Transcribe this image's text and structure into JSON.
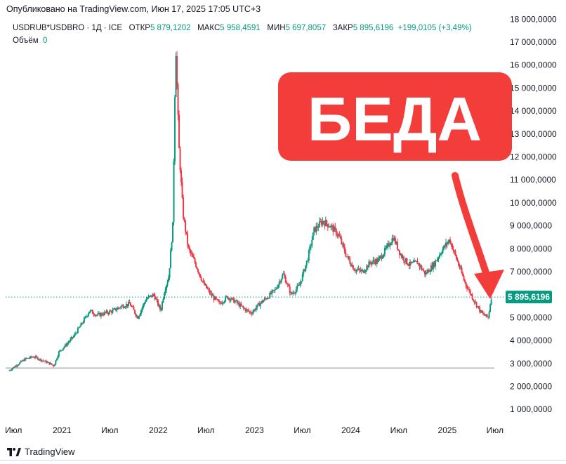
{
  "published_text": "Опубликовано на TradingView.com, Июн 17, 2025 17:05 UTC+3",
  "legend": {
    "symbol": "USDRUB*USDBRO · 1Д · ICE",
    "open_label": "ОТКР",
    "open_value": "5 879,1202",
    "high_label": "МАКС",
    "high_value": "5 958,4591",
    "low_label": "МИН",
    "low_value": "5 697,8057",
    "close_label": "ЗАКР",
    "close_value": "5 895,6196",
    "change": "+199,0105 (+3,49%)"
  },
  "volume": {
    "label": "Объём",
    "value": "0"
  },
  "annotation": {
    "text": "БЕДА",
    "color": "#f23d3b"
  },
  "branding": {
    "text": "TradingView",
    "icon": "tradingview-logo-icon"
  },
  "colors": {
    "up": "#089981",
    "down": "#f23645",
    "last_price_badge": "#089981",
    "price_line": "#089981",
    "baseline": "#b2b5be",
    "annotation": "#f23d3b"
  },
  "chart_data": {
    "type": "candlestick",
    "title": "",
    "xlabel": "",
    "ylabel": "",
    "ylim": [
      0,
      18500000
    ],
    "grid": false,
    "legend_position": "top-left",
    "y_ticks": [
      1000000,
      2000000,
      3000000,
      4000000,
      5000000,
      6000000,
      7000000,
      8000000,
      9000000,
      10000000,
      11000000,
      12000000,
      13000000,
      14000000,
      15000000,
      16000000,
      17000000,
      18000000
    ],
    "y_tick_labels": [
      "1 000,0000",
      "2 000,0000",
      "3 000,0000",
      "4 000,0000",
      "5 000,0000",
      "6 000,0000",
      "7 000,0000",
      "8 000,0000",
      "9 000,0000",
      "10 000,0000",
      "11 000,0000",
      "12 000,0000",
      "13 000,0000",
      "14 000,0000",
      "15 000,0000",
      "16 000,0000",
      "17 000,0000",
      "18 000,0000"
    ],
    "x_tick_labels": [
      "Июл",
      "2021",
      "Июл",
      "2022",
      "Июл",
      "2023",
      "Июл",
      "2024",
      "Июл",
      "2025",
      "Июл"
    ],
    "x_tick_dates": [
      "2020-07-01",
      "2021-01-01",
      "2021-07-01",
      "2022-01-01",
      "2022-07-01",
      "2023-01-01",
      "2023-07-01",
      "2024-01-01",
      "2024-07-01",
      "2025-01-01",
      "2025-07-01"
    ],
    "x_range": [
      "2020-06-01",
      "2025-07-20"
    ],
    "last_price": 5895619.6,
    "last_price_label": "5 895,6196",
    "baseline_value": 2800000,
    "series": [
      {
        "date_from": "2020-06-15",
        "date_to": "2025-06-17",
        "close": [
          [
            "2020-06-15",
            2700000
          ],
          [
            "2020-07-15",
            2950000
          ],
          [
            "2020-08-15",
            3200000
          ],
          [
            "2020-09-15",
            3300000
          ],
          [
            "2020-10-15",
            3150000
          ],
          [
            "2020-11-15",
            3000000
          ],
          [
            "2020-12-01",
            2900000
          ],
          [
            "2020-12-20",
            3500000
          ],
          [
            "2021-01-15",
            3800000
          ],
          [
            "2021-02-15",
            4200000
          ],
          [
            "2021-03-15",
            4700000
          ],
          [
            "2021-04-15",
            5300000
          ],
          [
            "2021-05-15",
            5100000
          ],
          [
            "2021-06-15",
            5200000
          ],
          [
            "2021-07-15",
            5300000
          ],
          [
            "2021-08-15",
            5500000
          ],
          [
            "2021-09-15",
            5600000
          ],
          [
            "2021-10-15",
            5000000
          ],
          [
            "2021-11-15",
            5800000
          ],
          [
            "2021-12-15",
            6000000
          ],
          [
            "2022-01-10",
            5300000
          ],
          [
            "2022-01-25",
            6200000
          ],
          [
            "2022-02-10",
            6800000
          ],
          [
            "2022-02-25",
            9000000
          ],
          [
            "2022-03-08",
            17000000
          ],
          [
            "2022-03-20",
            12500000
          ],
          [
            "2022-04-05",
            9500000
          ],
          [
            "2022-04-25",
            8000000
          ],
          [
            "2022-05-20",
            7400000
          ],
          [
            "2022-06-20",
            6500000
          ],
          [
            "2022-07-20",
            6000000
          ],
          [
            "2022-08-20",
            5600000
          ],
          [
            "2022-09-20",
            5900000
          ],
          [
            "2022-10-20",
            5700000
          ],
          [
            "2022-11-20",
            5400000
          ],
          [
            "2022-12-20",
            5200000
          ],
          [
            "2023-01-20",
            5600000
          ],
          [
            "2023-02-20",
            5900000
          ],
          [
            "2023-03-20",
            6200000
          ],
          [
            "2023-04-20",
            6900000
          ],
          [
            "2023-05-20",
            6000000
          ],
          [
            "2023-06-20",
            6400000
          ],
          [
            "2023-07-20",
            7500000
          ],
          [
            "2023-08-15",
            8800000
          ],
          [
            "2023-09-15",
            9200000
          ],
          [
            "2023-10-15",
            9000000
          ],
          [
            "2023-11-15",
            8600000
          ],
          [
            "2023-12-15",
            7700000
          ],
          [
            "2024-01-15",
            7100000
          ],
          [
            "2024-02-15",
            7000000
          ],
          [
            "2024-03-15",
            7400000
          ],
          [
            "2024-04-15",
            7500000
          ],
          [
            "2024-05-15",
            8000000
          ],
          [
            "2024-06-10",
            8500000
          ],
          [
            "2024-07-10",
            7700000
          ],
          [
            "2024-08-10",
            7300000
          ],
          [
            "2024-09-10",
            7400000
          ],
          [
            "2024-10-10",
            6900000
          ],
          [
            "2024-11-10",
            7300000
          ],
          [
            "2024-12-10",
            7900000
          ],
          [
            "2025-01-10",
            8400000
          ],
          [
            "2025-02-10",
            7400000
          ],
          [
            "2025-03-10",
            6500000
          ],
          [
            "2025-04-10",
            5800000
          ],
          [
            "2025-05-10",
            5200000
          ],
          [
            "2025-06-05",
            5000000
          ],
          [
            "2025-06-17",
            5895619.6
          ]
        ]
      }
    ]
  }
}
